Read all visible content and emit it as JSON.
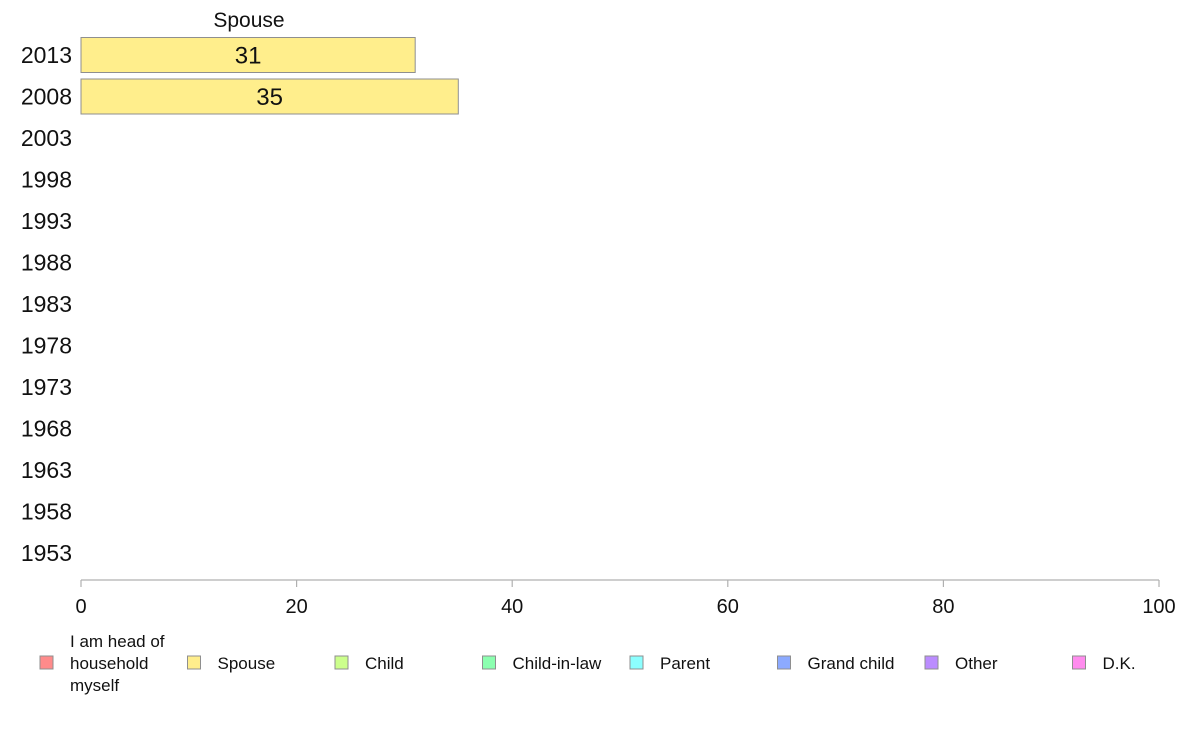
{
  "chart_data": {
    "type": "bar",
    "orientation": "horizontal",
    "stacked": true,
    "categories": [
      "2013",
      "2008",
      "2003",
      "1998",
      "1993",
      "1988",
      "1983",
      "1978",
      "1973",
      "1968",
      "1963",
      "1958",
      "1953"
    ],
    "series_heading": "Spouse",
    "series": [
      {
        "name": "I am head of household myself",
        "color": "#FF8B8B",
        "values": [
          null,
          null,
          null,
          null,
          null,
          null,
          null,
          null,
          null,
          null,
          null,
          null,
          null
        ]
      },
      {
        "name": "Spouse",
        "color": "#FFEE8C",
        "values": [
          31,
          35,
          null,
          null,
          null,
          null,
          null,
          null,
          null,
          null,
          null,
          null,
          null
        ]
      },
      {
        "name": "Child",
        "color": "#CCFF8C",
        "values": [
          null,
          null,
          null,
          null,
          null,
          null,
          null,
          null,
          null,
          null,
          null,
          null,
          null
        ]
      },
      {
        "name": "Child-in-law",
        "color": "#8CFFB0",
        "values": [
          null,
          null,
          null,
          null,
          null,
          null,
          null,
          null,
          null,
          null,
          null,
          null,
          null
        ]
      },
      {
        "name": "Parent",
        "color": "#8CFFFF",
        "values": [
          null,
          null,
          null,
          null,
          null,
          null,
          null,
          null,
          null,
          null,
          null,
          null,
          null
        ]
      },
      {
        "name": "Grand child",
        "color": "#8CAAFF",
        "values": [
          null,
          null,
          null,
          null,
          null,
          null,
          null,
          null,
          null,
          null,
          null,
          null,
          null
        ]
      },
      {
        "name": "Other",
        "color": "#BB8CFF",
        "values": [
          null,
          null,
          null,
          null,
          null,
          null,
          null,
          null,
          null,
          null,
          null,
          null,
          null
        ]
      },
      {
        "name": "D.K.",
        "color": "#FF8CEE",
        "values": [
          null,
          null,
          null,
          null,
          null,
          null,
          null,
          null,
          null,
          null,
          null,
          null,
          null
        ]
      }
    ],
    "xlim": [
      0,
      100
    ],
    "xticks": [
      "0",
      "20",
      "40",
      "60",
      "80",
      "100"
    ],
    "grid": false,
    "legend": "bottom"
  }
}
